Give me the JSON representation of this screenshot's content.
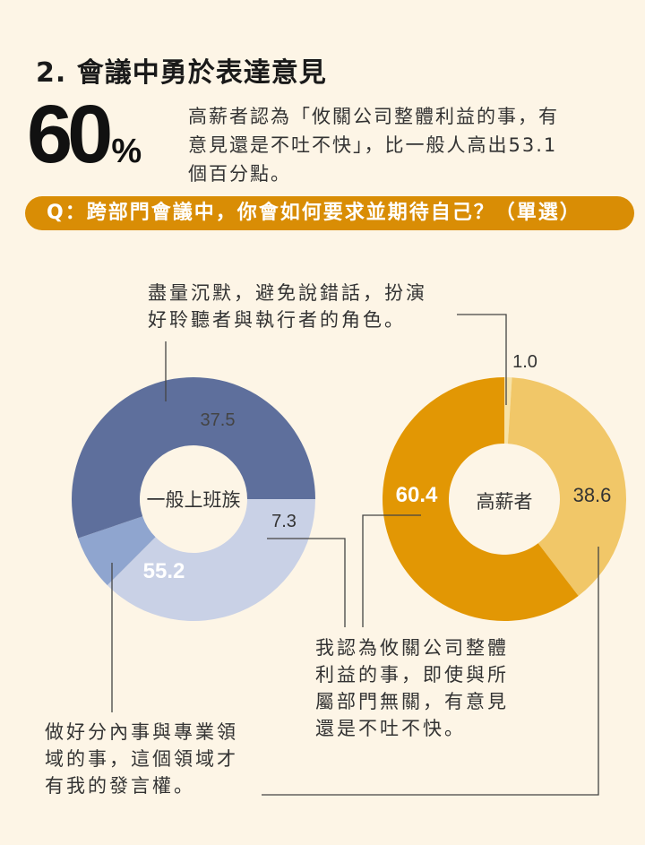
{
  "header": {
    "title": "2. 會議中勇於表達意見",
    "big_number": "60",
    "big_unit": "%",
    "lead_lines": [
      "高薪者認為「攸關公司整體利益的事，有",
      "意見還是不吐不快」，比一般人高出53.1",
      "個百分點。"
    ]
  },
  "question": "Q：跨部門會議中，你會如何要求並期待自己？（單選）",
  "annotations": {
    "silent": [
      "盡量沉默，避免說錯話，扮演",
      "好聆聽者與執行者的角色。"
    ],
    "speak_up": [
      "我認為攸關公司整體",
      "利益的事，即使與所",
      "屬部門無關，有意見",
      "還是不吐不快。"
    ],
    "domain": [
      "做好分內事與專業領",
      "域的事，這個領域才",
      "有我的發言權。"
    ]
  },
  "chart_data": [
    {
      "type": "pie",
      "donut": true,
      "center_label": "一般上班族",
      "slices": [
        {
          "category": "盡量沉默，避免說錯話",
          "value": 37.5,
          "label": "37.5",
          "color": "#c9d1e6"
        },
        {
          "category": "有意見還是不吐不快",
          "value": 7.3,
          "label": "7.3",
          "color": "#8fa5cf"
        },
        {
          "category": "做好分內事與專業領域的事",
          "value": 55.2,
          "label": "55.2",
          "color": "#5e6f9c"
        }
      ]
    },
    {
      "type": "pie",
      "donut": true,
      "center_label": "高薪者",
      "slices": [
        {
          "category": "盡量沉默，避免說錯話",
          "value": 1.0,
          "label": "1.0",
          "color": "#f7e2a6"
        },
        {
          "category": "做好分內事與專業領域的事",
          "value": 38.6,
          "label": "38.6",
          "color": "#f1c768"
        },
        {
          "category": "有意見還是不吐不快",
          "value": 60.4,
          "label": "60.4",
          "color": "#e29704"
        }
      ]
    }
  ]
}
